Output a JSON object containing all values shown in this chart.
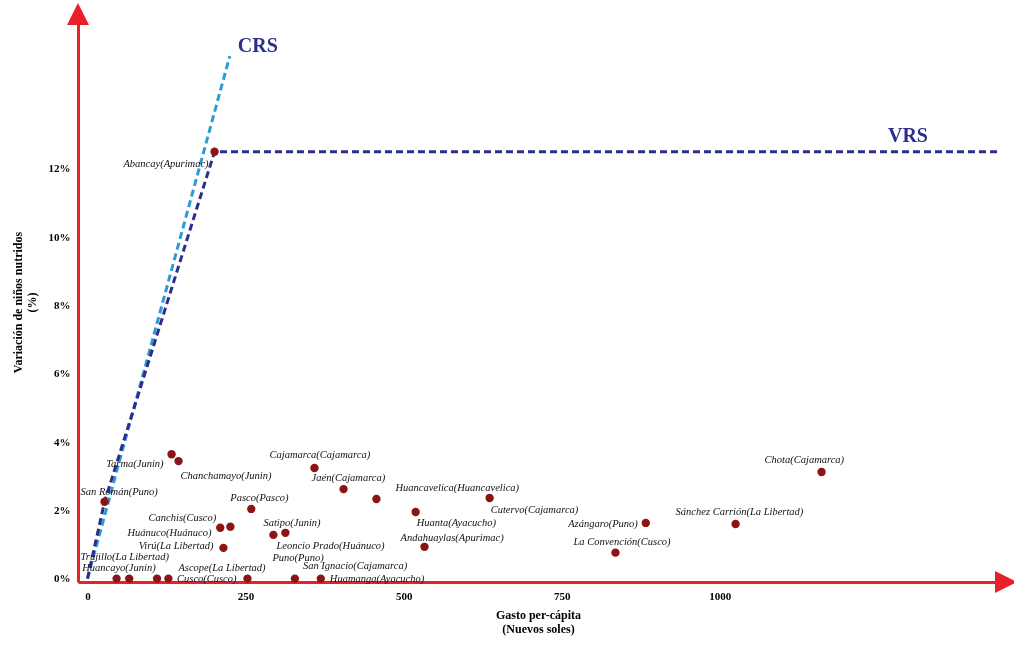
{
  "chart_data": {
    "type": "scatter",
    "xlabel": "Gasto per-cápita\n(Nuevos soles)",
    "ylabel": "Variación de niños nutridos\n(%)",
    "xlim": [
      -15,
      1440
    ],
    "ylim": [
      -0.1,
      16.3
    ],
    "xticks": [
      0,
      250,
      500,
      750,
      1000
    ],
    "yticks": [
      {
        "value": 0,
        "label": "0%"
      },
      {
        "value": 2,
        "label": "2%"
      },
      {
        "value": 4,
        "label": "4%"
      },
      {
        "value": 6,
        "label": "6%"
      },
      {
        "value": 8,
        "label": "8%"
      },
      {
        "value": 10,
        "label": "10%"
      },
      {
        "value": 12,
        "label": "12%"
      }
    ],
    "grid": false,
    "legend": false,
    "series": [
      {
        "type": "line",
        "name": "CRS",
        "color": "#2e9bd6",
        "line_style": "dashed",
        "marker": "none",
        "x": [
          0,
          225
        ],
        "values": [
          0,
          15.3
        ]
      },
      {
        "type": "line",
        "name": "VRS",
        "color": "#2b2f8c",
        "line_style": "dashed",
        "marker": "none",
        "x": [
          0,
          27,
          201,
          1440
        ],
        "values": [
          0,
          2.25,
          12.5,
          12.5
        ]
      },
      {
        "color": "#8b1414",
        "marker": "circle",
        "x": [
          201,
          27,
          133,
          144,
          359,
          405,
          457,
          259,
          210,
          226,
          215,
          313,
          294,
          519,
          533,
          636,
          883,
          835,
          1025,
          1161,
          46,
          66,
          110,
          128,
          253,
          328,
          369
        ],
        "values": [
          12.5,
          2.25,
          3.64,
          3.44,
          3.24,
          2.62,
          2.33,
          2.04,
          1.49,
          1.52,
          0.9,
          1.34,
          1.28,
          1.95,
          0.93,
          2.36,
          1.63,
          0.76,
          1.6,
          3.12,
          0,
          0,
          0,
          0,
          0,
          0,
          0
        ]
      }
    ],
    "annotations": [
      {
        "text": "Abancay(Apurimac)",
        "x": 201,
        "y": 12.5
      },
      {
        "text": "San Román(Puno)",
        "x": 27,
        "y": 2.25
      },
      {
        "text": "Tarma(Junin)",
        "x": 133,
        "y": 3.64
      },
      {
        "text": "Chanchamayo(Junin)",
        "x": 144,
        "y": 3.44
      },
      {
        "text": "Cajamarca(Cajamarca)",
        "x": 359,
        "y": 3.24
      },
      {
        "text": "Jaén(Cajamarca)",
        "x": 405,
        "y": 2.62
      },
      {
        "text": "Huancavelica(Huancavelica)",
        "x": 457,
        "y": 2.33
      },
      {
        "text": "Pasco(Pasco)",
        "x": 259,
        "y": 2.04
      },
      {
        "text": "Canchis(Cusco)",
        "x": 210,
        "y": 1.49
      },
      {
        "text": "Huánuco(Huánuco)",
        "x": 226,
        "y": 1.52
      },
      {
        "text": "Virú(La Libertad)",
        "x": 215,
        "y": 0.9
      },
      {
        "text": "Satipo(Junin)",
        "x": 313,
        "y": 1.34
      },
      {
        "text": "Leoncio Prado(Huánuco)",
        "x": 294,
        "y": 1.28
      },
      {
        "text": "Huanta(Ayacucho)",
        "x": 519,
        "y": 1.95
      },
      {
        "text": "Andahuaylas(Apurimac)",
        "x": 533,
        "y": 0.93
      },
      {
        "text": "Cutervo(Cajamarca)",
        "x": 636,
        "y": 2.36
      },
      {
        "text": "Azángaro(Puno)",
        "x": 883,
        "y": 1.63
      },
      {
        "text": "La Convención(Cusco)",
        "x": 835,
        "y": 0.76
      },
      {
        "text": "Sánchez Carrión(La Libertad)",
        "x": 1025,
        "y": 1.6
      },
      {
        "text": "Chota(Cajamarca)",
        "x": 1161,
        "y": 3.12
      },
      {
        "text": "Trujillo(La Libertad)",
        "x": 46,
        "y": 0
      },
      {
        "text": "Huancayo(Junin)",
        "x": 66,
        "y": 0
      },
      {
        "text": "Cusco(Cusco)",
        "x": 110,
        "y": 0
      },
      {
        "text": "Ascope(La Libertad)",
        "x": 128,
        "y": 0
      },
      {
        "text": "Puno(Puno)",
        "x": 253,
        "y": 0
      },
      {
        "text": "San Ignacio(Cajamarca)",
        "x": 328,
        "y": 0
      },
      {
        "text": "Huamanga(Ayacucho)",
        "x": 369,
        "y": 0
      }
    ]
  }
}
